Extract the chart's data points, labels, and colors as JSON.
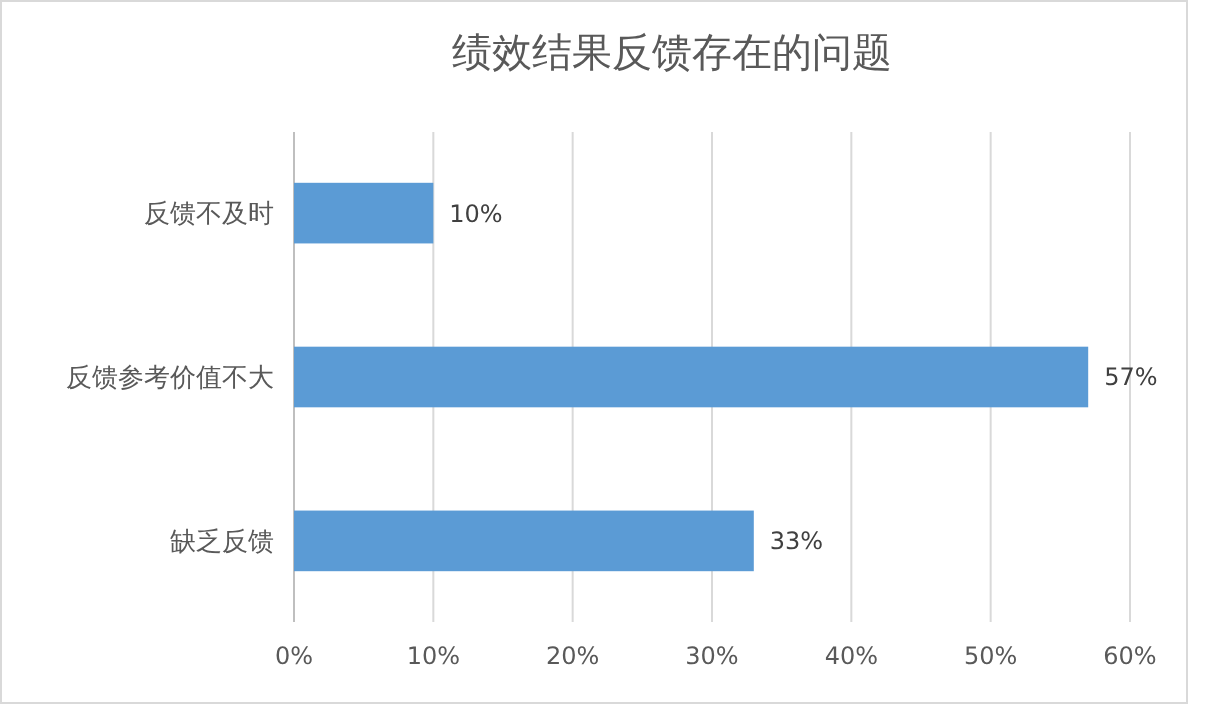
{
  "chart_data": {
    "type": "bar",
    "orientation": "horizontal",
    "title": "绩效结果反馈存在的问题",
    "categories": [
      "反馈不及时",
      "反馈参考价值不大",
      "缺乏反馈"
    ],
    "values": [
      10,
      57,
      33
    ],
    "color": "#5b9bd5",
    "value_labels": [
      "10%",
      "57%",
      "33%"
    ],
    "xlim": [
      0,
      60
    ],
    "xticks": [
      {
        "value": 0,
        "label": "0%"
      },
      {
        "value": 10,
        "label": "10%"
      },
      {
        "value": 20,
        "label": "20%"
      },
      {
        "value": 30,
        "label": "30%"
      },
      {
        "value": 40,
        "label": "40%"
      },
      {
        "value": 50,
        "label": "50%"
      },
      {
        "value": 60,
        "label": "60%"
      }
    ],
    "grid": "x"
  }
}
